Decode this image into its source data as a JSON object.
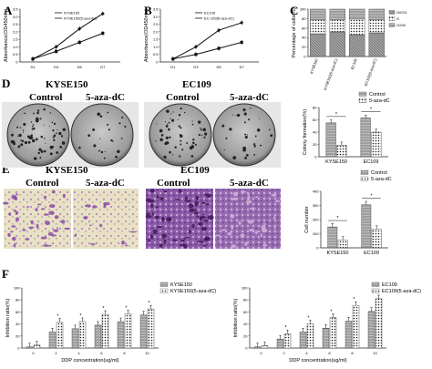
{
  "panels": {
    "A": "A",
    "B": "B",
    "C": "C",
    "D": "D",
    "E": "E",
    "F": "F"
  },
  "photo_labels": {
    "D": {
      "group1": "KYSE150",
      "group2": "EC109",
      "control": "Control",
      "treated": "5-aza-dC"
    },
    "E": {
      "group1": "KYSE150",
      "group2": "EC109",
      "control": "Control",
      "treated": "5-aza-dC"
    }
  },
  "colors": {
    "dark": "#333333",
    "light": "#bbbbbb",
    "stained": "#7a4a9a",
    "plate": "#9a9a9a"
  },
  "chart_data": [
    {
      "id": "A",
      "type": "line",
      "x": [
        "D1",
        "D3",
        "D5",
        "D7"
      ],
      "ylabel": "Absorbance(OD450nm)",
      "ylim": [
        0,
        3.5
      ],
      "yticks": [
        "0",
        "0.5",
        "1.0",
        "1.5",
        "2.0",
        "2.5",
        "3.0",
        "3.5"
      ],
      "series": [
        {
          "name": "KYSE150",
          "values": [
            0.2,
            1.0,
            2.2,
            3.2
          ],
          "marker": "diamond"
        },
        {
          "name": "KYSE150(5-aza-dC)",
          "values": [
            0.2,
            0.7,
            1.3,
            1.9
          ],
          "marker": "square"
        }
      ]
    },
    {
      "id": "B",
      "type": "line",
      "x": [
        "D1",
        "D3",
        "D5",
        "D7"
      ],
      "ylabel": "Absorbance(OD450nm)",
      "ylim": [
        0,
        3.5
      ],
      "yticks": [
        "0",
        "0.5",
        "1.0",
        "1.5",
        "2.0",
        "2.5",
        "3.0",
        "3.5"
      ],
      "series": [
        {
          "name": "EC109",
          "values": [
            0.2,
            1.0,
            2.1,
            2.6
          ],
          "marker": "diamond"
        },
        {
          "name": "EC-109(5-aza-dC)",
          "values": [
            0.2,
            0.5,
            0.9,
            1.3
          ],
          "marker": "square"
        }
      ]
    },
    {
      "id": "C",
      "type": "bar",
      "categories": [
        "KYSE150",
        "KYSE150(5-aza-dC)",
        "EC109",
        "EC109(5-aza-dC)"
      ],
      "ylabel": "Percentage of cells(%)",
      "ylim": [
        0,
        100
      ],
      "yticks": [
        "0",
        "20",
        "40",
        "60",
        "80",
        "100"
      ],
      "series": [
        {
          "name": "G0/G1",
          "values": [
            48,
            52,
            46,
            50
          ]
        },
        {
          "name": "S",
          "values": [
            30,
            26,
            33,
            28
          ]
        },
        {
          "name": "G2/M",
          "values": [
            22,
            22,
            21,
            22
          ]
        }
      ]
    },
    {
      "id": "D",
      "type": "bar",
      "categories": [
        "KYSE150",
        "EC109"
      ],
      "ylabel": "Colony formation(%)",
      "ylim": [
        0,
        80
      ],
      "yticks": [
        "0",
        "20",
        "40",
        "60",
        "80"
      ],
      "significance": "*",
      "series": [
        {
          "name": "Control",
          "values": [
            55,
            63
          ]
        },
        {
          "name": "5-aza-dC",
          "values": [
            19,
            40
          ]
        }
      ]
    },
    {
      "id": "E",
      "type": "bar",
      "categories": [
        "KYSE150",
        "EC109"
      ],
      "ylabel": "Cell number",
      "ylim": [
        0,
        400
      ],
      "yticks": [
        "0",
        "100",
        "200",
        "300",
        "400"
      ],
      "significance": "*",
      "series": [
        {
          "name": "Control",
          "values": [
            148,
            305
          ]
        },
        {
          "name": "5-aza-dC",
          "values": [
            55,
            132
          ]
        }
      ]
    },
    {
      "id": "F1",
      "type": "bar",
      "categories": [
        "0",
        "2",
        "4",
        "6",
        "8",
        "10"
      ],
      "xlabel": "DDP concentration(ug/ml)",
      "ylabel": "Inhibition ratio(%)",
      "ylim": [
        0,
        100
      ],
      "yticks": [
        "0",
        "20",
        "40",
        "60",
        "80",
        "100"
      ],
      "significance": "*",
      "series": [
        {
          "name": "KYSE150",
          "values": [
            2,
            27,
            32,
            38,
            44,
            55
          ]
        },
        {
          "name": "KYSE150(5-aza-dC)",
          "values": [
            5,
            43,
            44,
            56,
            57,
            65
          ]
        }
      ]
    },
    {
      "id": "F2",
      "type": "bar",
      "categories": [
        "0",
        "2",
        "4",
        "6",
        "8",
        "10"
      ],
      "xlabel": "DDP concentration(ug/ml)",
      "ylabel": "Inhibition ratio(%)",
      "ylim": [
        0,
        100
      ],
      "yticks": [
        "0",
        "20",
        "40",
        "60",
        "80",
        "100"
      ],
      "significance": "*",
      "series": [
        {
          "name": "EC109",
          "values": [
            2,
            15,
            27,
            33,
            45,
            61
          ]
        },
        {
          "name": "EC109(5-aza-dC)",
          "values": [
            4,
            24,
            40,
            51,
            71,
            82
          ]
        }
      ]
    }
  ]
}
